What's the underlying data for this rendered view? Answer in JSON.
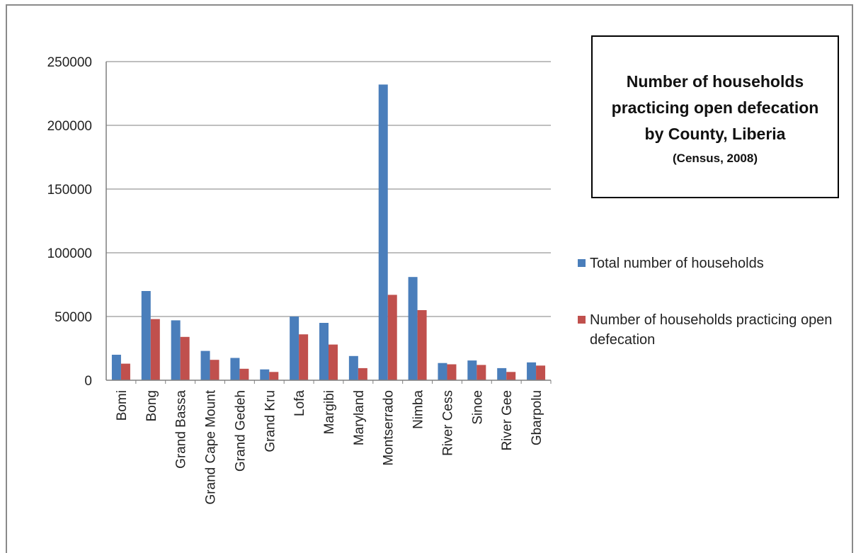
{
  "chart_data": {
    "type": "bar",
    "title": "Number of households practicing open defecation by County, Liberia",
    "subtitle": "(Census, 2008)",
    "categories": [
      "Bomi",
      "Bong",
      "Grand Bassa",
      "Grand Cape Mount",
      "Grand Gedeh",
      "Grand Kru",
      "Lofa",
      "Margibi",
      "Maryland",
      "Montserrado",
      "Nimba",
      "River Cess",
      "Sinoe",
      "River Gee",
      "Gbarpolu"
    ],
    "series": [
      {
        "name": "Total number of households",
        "color": "#4a7ebb",
        "values": [
          20000,
          70000,
          47000,
          23000,
          17500,
          8500,
          50000,
          45000,
          19000,
          232000,
          81000,
          13500,
          15500,
          9500,
          14000
        ]
      },
      {
        "name": "Number of households practicing open defecation",
        "color": "#c0504d",
        "values": [
          13000,
          48000,
          34000,
          16000,
          9000,
          6500,
          36000,
          28000,
          9500,
          67000,
          55000,
          12500,
          12000,
          6500,
          11500
        ]
      }
    ],
    "yticks": [
      "0",
      "50000",
      "100000",
      "150000",
      "200000",
      "250000"
    ],
    "ylim": [
      0,
      250000
    ],
    "grid": true,
    "legend_position": "right"
  }
}
